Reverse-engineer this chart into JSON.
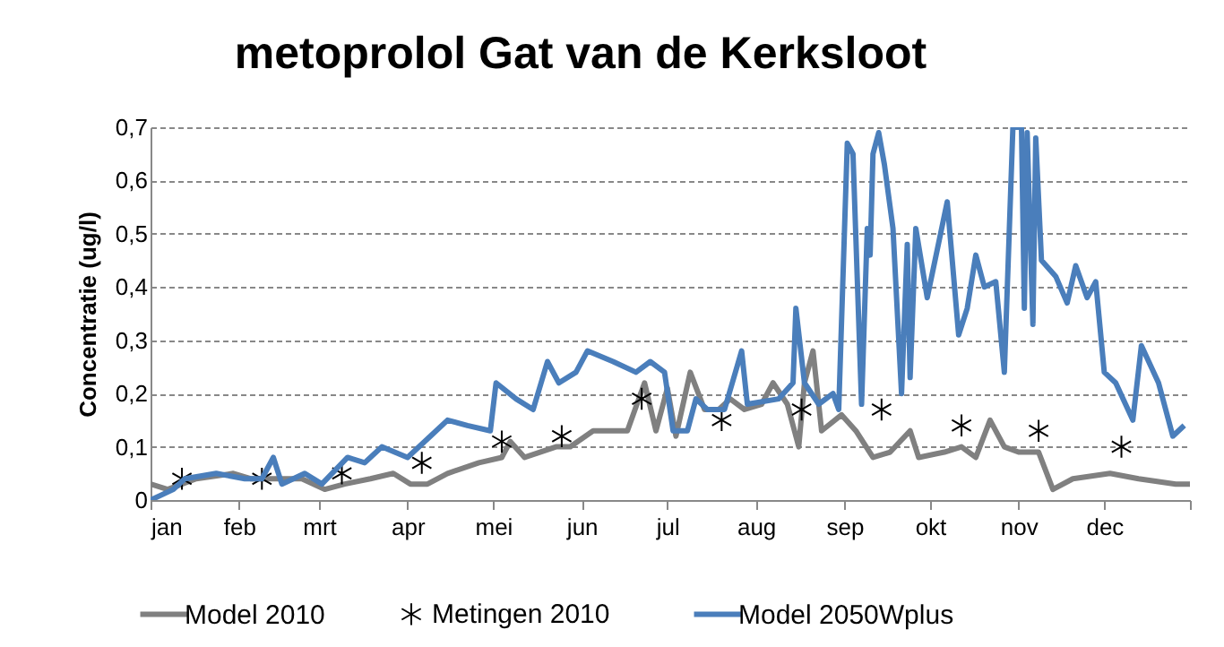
{
  "chart_data": {
    "type": "line",
    "title": "metoprolol Gat van de Kerksloot",
    "ylabel": "Concentratie (ug/l)",
    "xlim": [
      "--01-01",
      "--12-31"
    ],
    "xticks": [
      {
        "value": "--01-01",
        "label": "jan"
      },
      {
        "value": "--02-01",
        "label": "feb"
      },
      {
        "value": "--03-01",
        "label": "mrt"
      },
      {
        "value": "--04-01",
        "label": "apr"
      },
      {
        "value": "--05-01",
        "label": "mei"
      },
      {
        "value": "--06-01",
        "label": "jun"
      },
      {
        "value": "--07-01",
        "label": "jul"
      },
      {
        "value": "--08-01",
        "label": "aug"
      },
      {
        "value": "--09-01",
        "label": "sep"
      },
      {
        "value": "--10-01",
        "label": "okt"
      },
      {
        "value": "--11-01",
        "label": "nov"
      },
      {
        "value": "--12-01",
        "label": "dec"
      },
      {
        "value": "--12-31",
        "label": null
      }
    ],
    "ylim": [
      0,
      0.7
    ],
    "yticks": [
      0,
      {
        "value": 0.1,
        "label": "0,1"
      },
      {
        "value": 0.2,
        "label": "0,2"
      },
      {
        "value": 0.3,
        "label": "0,3"
      },
      {
        "value": 0.4,
        "label": "0,4"
      },
      {
        "value": 0.5,
        "label": "0,5"
      },
      {
        "value": 0.6,
        "label": "0,6"
      },
      {
        "value": 0.7,
        "label": "0,7"
      }
    ],
    "grid": "y",
    "legend": "bottom",
    "series": [
      {
        "name": "Model 2010",
        "color": "#808080",
        "x": [
          "--01-01",
          "--01-07",
          "--01-17",
          "--01-30",
          "--02-05",
          "--02-17",
          "--02-23",
          "--03-03",
          "--03-10",
          "--03-19",
          "--03-27",
          "--04-02",
          "--04-08",
          "--04-15",
          "--04-26",
          "--05-04",
          "--05-07",
          "--05-12",
          "--05-23",
          "--05-28",
          "--06-05",
          "--06-11",
          "--06-17",
          "--06-23",
          "--06-27",
          "--07-01",
          "--07-04",
          "--07-09",
          "--07-14",
          "--07-19",
          "--07-23",
          "--07-28",
          "--08-03",
          "--08-07",
          "--08-12",
          "--08-16",
          "--08-18",
          "--08-21",
          "--08-24",
          "--08-31",
          "--09-05",
          "--09-11",
          "--09-17",
          "--09-24",
          "--09-27",
          "--10-06",
          "--10-12",
          "--10-17",
          "--10-22",
          "--10-27",
          "--11-01",
          "--11-08",
          "--11-13",
          "--11-20",
          "--12-03",
          "--12-13",
          "--12-26",
          "--12-31"
        ],
        "values": [
          0.03,
          0.02,
          0.04,
          0.05,
          0.04,
          0.04,
          0.04,
          0.02,
          0.03,
          0.04,
          0.05,
          0.03,
          0.03,
          0.05,
          0.07,
          0.08,
          0.11,
          0.08,
          0.1,
          0.1,
          0.13,
          0.13,
          0.13,
          0.22,
          0.13,
          0.21,
          0.12,
          0.24,
          0.17,
          0.17,
          0.19,
          0.17,
          0.18,
          0.22,
          0.18,
          0.1,
          0.22,
          0.28,
          0.13,
          0.16,
          0.13,
          0.08,
          0.09,
          0.13,
          0.08,
          0.09,
          0.1,
          0.08,
          0.15,
          0.1,
          0.09,
          0.09,
          0.02,
          0.04,
          0.05,
          0.04,
          0.03,
          0.03
        ]
      },
      {
        "name": "Metingen 2010",
        "type": "scatter",
        "marker": "cross",
        "color": "#000000",
        "x": [
          "--01-12",
          "--02-09",
          "--03-09",
          "--04-06",
          "--05-04",
          "--05-25",
          "--06-22",
          "--07-20",
          "--08-17",
          "--09-14",
          "--10-12",
          "--11-08",
          "--12-07"
        ],
        "values": [
          0.04,
          0.04,
          0.05,
          0.07,
          0.11,
          0.12,
          0.19,
          0.15,
          0.17,
          0.17,
          0.14,
          0.13,
          0.1
        ]
      },
      {
        "name": "Model 2050Wplus",
        "color": "#4a7ebb",
        "x": [
          "--01-01",
          "--01-09",
          "--01-13",
          "--01-24",
          "--02-03",
          "--02-09",
          "--02-13",
          "--02-16",
          "--02-24",
          "--03-02",
          "--03-11",
          "--03-17",
          "--03-23",
          "--04-01",
          "--04-09",
          "--04-15",
          "--04-22",
          "--04-30",
          "--05-02",
          "--05-09",
          "--05-15",
          "--05-20",
          "--05-24",
          "--05-30",
          "--06-03",
          "--06-12",
          "--06-20",
          "--06-25",
          "--06-30",
          "--07-03",
          "--07-08",
          "--07-11",
          "--07-15",
          "--07-21",
          "--07-27",
          "--07-29",
          "--08-09",
          "--08-14",
          "--08-15",
          "--08-18",
          "--08-23",
          "--08-28",
          "--08-30",
          "--09-02",
          "--09-04",
          "--09-07",
          "--09-09",
          "--09-10",
          "--09-11",
          "--09-13",
          "--09-15",
          "--09-18",
          "--09-21",
          "--09-23",
          "--09-24",
          "--09-26",
          "--09-30",
          "--10-07",
          "--10-11",
          "--10-14",
          "--10-17",
          "--10-20",
          "--10-24",
          "--10-27",
          "--10-30",
          "--11-02",
          "--11-03",
          "--11-04",
          "--11-06",
          "--11-07",
          "--11-09",
          "--11-14",
          "--11-18",
          "--11-21",
          "--11-25",
          "--11-28",
          "--12-01",
          "--12-05",
          "--12-11",
          "--12-14",
          "--12-20",
          "--12-25",
          "--12-29"
        ],
        "values": [
          0.0,
          0.02,
          0.04,
          0.05,
          0.04,
          0.04,
          0.08,
          0.03,
          0.05,
          0.03,
          0.08,
          0.07,
          0.1,
          0.08,
          0.12,
          0.15,
          0.14,
          0.13,
          0.22,
          0.19,
          0.17,
          0.26,
          0.22,
          0.24,
          0.28,
          0.26,
          0.24,
          0.26,
          0.24,
          0.13,
          0.13,
          0.19,
          0.17,
          0.17,
          0.28,
          0.18,
          0.19,
          0.22,
          0.36,
          0.22,
          0.18,
          0.2,
          0.17,
          0.67,
          0.65,
          0.18,
          0.51,
          0.46,
          0.65,
          0.69,
          0.63,
          0.51,
          0.2,
          0.48,
          0.23,
          0.51,
          0.38,
          0.56,
          0.31,
          0.36,
          0.46,
          0.4,
          0.41,
          0.24,
          0.7,
          0.7,
          0.36,
          0.69,
          0.33,
          0.68,
          0.45,
          0.42,
          0.37,
          0.44,
          0.38,
          0.41,
          0.24,
          0.22,
          0.15,
          0.29,
          0.22,
          0.12,
          0.14
        ]
      }
    ]
  }
}
